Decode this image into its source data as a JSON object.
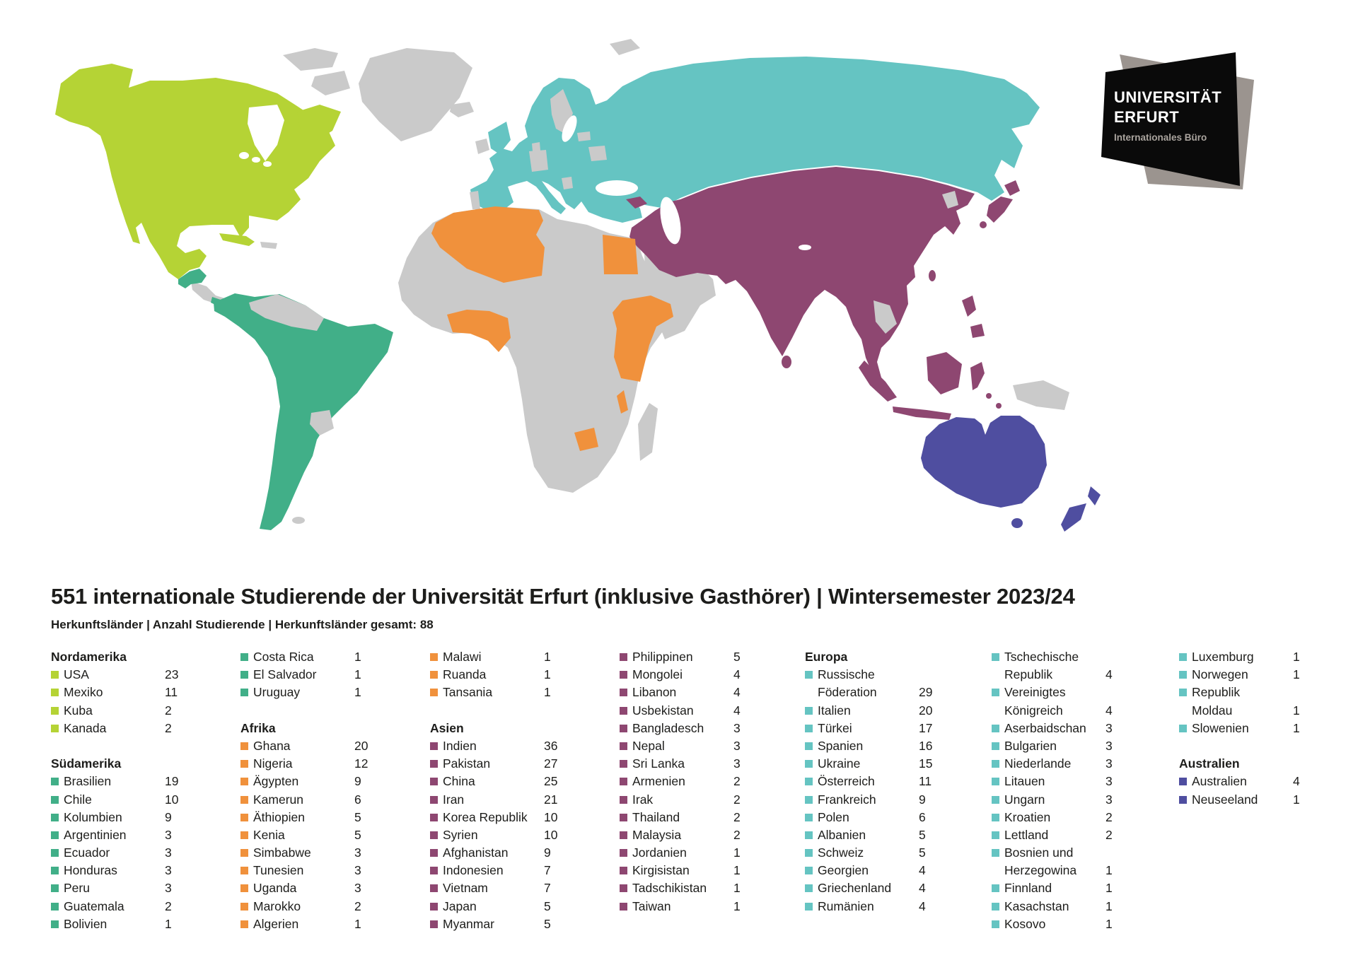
{
  "title": "551 internationale Studierende der Universität Erfurt (inklusive Gasthörer) | Wintersemester 2023/24",
  "subtitle": "Herkunftsländer | Anzahl Studierende | Herkunftsländer gesamt: 88",
  "logo": {
    "line1": "UNIVERSITÄT",
    "line2": "ERFURT",
    "subtitle": "Internationales Büro",
    "black": "#0a0a0a",
    "gray": "#9b948f"
  },
  "map": {
    "colors": {
      "nordamerika": "#b5d335",
      "suedamerika": "#41af88",
      "afrika": "#f0913c",
      "asien": "#8e4771",
      "europa": "#65c4c2",
      "australien": "#4f4ea0",
      "ohne_studierende": "#cacaca"
    }
  },
  "legend": {
    "columns": [
      {
        "rows": [
          {
            "type": "header",
            "text": "Nordamerika"
          },
          {
            "type": "item",
            "color": "nordamerika",
            "text": "USA",
            "value": "23"
          },
          {
            "type": "item",
            "color": "nordamerika",
            "text": "Mexiko",
            "value": "11"
          },
          {
            "type": "item",
            "color": "nordamerika",
            "text": "Kuba",
            "value": "2"
          },
          {
            "type": "item",
            "color": "nordamerika",
            "text": "Kanada",
            "value": "2"
          },
          {
            "type": "spacer"
          },
          {
            "type": "header",
            "text": "Südamerika"
          },
          {
            "type": "item",
            "color": "suedamerika",
            "text": "Brasilien",
            "value": "19"
          },
          {
            "type": "item",
            "color": "suedamerika",
            "text": "Chile",
            "value": "10"
          },
          {
            "type": "item",
            "color": "suedamerika",
            "text": "Kolumbien",
            "value": "9"
          },
          {
            "type": "item",
            "color": "suedamerika",
            "text": "Argentinien",
            "value": "3"
          },
          {
            "type": "item",
            "color": "suedamerika",
            "text": "Ecuador",
            "value": "3"
          },
          {
            "type": "item",
            "color": "suedamerika",
            "text": "Honduras",
            "value": "3"
          },
          {
            "type": "item",
            "color": "suedamerika",
            "text": "Peru",
            "value": "3"
          },
          {
            "type": "item",
            "color": "suedamerika",
            "text": "Guatemala",
            "value": "2"
          },
          {
            "type": "item",
            "color": "suedamerika",
            "text": "Bolivien",
            "value": "1"
          }
        ]
      },
      {
        "rows": [
          {
            "type": "item",
            "color": "suedamerika",
            "text": "Costa Rica",
            "value": "1"
          },
          {
            "type": "item",
            "color": "suedamerika",
            "text": "El Salvador",
            "value": "1"
          },
          {
            "type": "item",
            "color": "suedamerika",
            "text": "Uruguay",
            "value": "1"
          },
          {
            "type": "spacer"
          },
          {
            "type": "header",
            "text": "Afrika"
          },
          {
            "type": "item",
            "color": "afrika",
            "text": "Ghana",
            "value": "20"
          },
          {
            "type": "item",
            "color": "afrika",
            "text": "Nigeria",
            "value": "12"
          },
          {
            "type": "item",
            "color": "afrika",
            "text": "Ägypten",
            "value": "9"
          },
          {
            "type": "item",
            "color": "afrika",
            "text": "Kamerun",
            "value": "6"
          },
          {
            "type": "item",
            "color": "afrika",
            "text": "Äthiopien",
            "value": "5"
          },
          {
            "type": "item",
            "color": "afrika",
            "text": "Kenia",
            "value": "5"
          },
          {
            "type": "item",
            "color": "afrika",
            "text": "Simbabwe",
            "value": "3"
          },
          {
            "type": "item",
            "color": "afrika",
            "text": "Tunesien",
            "value": "3"
          },
          {
            "type": "item",
            "color": "afrika",
            "text": "Uganda",
            "value": "3"
          },
          {
            "type": "item",
            "color": "afrika",
            "text": "Marokko",
            "value": "2"
          },
          {
            "type": "item",
            "color": "afrika",
            "text": "Algerien",
            "value": "1"
          }
        ]
      },
      {
        "rows": [
          {
            "type": "item",
            "color": "afrika",
            "text": "Malawi",
            "value": "1"
          },
          {
            "type": "item",
            "color": "afrika",
            "text": "Ruanda",
            "value": "1"
          },
          {
            "type": "item",
            "color": "afrika",
            "text": "Tansania",
            "value": "1"
          },
          {
            "type": "spacer"
          },
          {
            "type": "header",
            "text": "Asien"
          },
          {
            "type": "item",
            "color": "asien",
            "text": "Indien",
            "value": "36"
          },
          {
            "type": "item",
            "color": "asien",
            "text": "Pakistan",
            "value": "27"
          },
          {
            "type": "item",
            "color": "asien",
            "text": "China",
            "value": "25"
          },
          {
            "type": "item",
            "color": "asien",
            "text": "Iran",
            "value": "21"
          },
          {
            "type": "item",
            "color": "asien",
            "text": "Korea Republik",
            "value": "10"
          },
          {
            "type": "item",
            "color": "asien",
            "text": "Syrien",
            "value": "10"
          },
          {
            "type": "item",
            "color": "asien",
            "text": "Afghanistan",
            "value": "9"
          },
          {
            "type": "item",
            "color": "asien",
            "text": "Indonesien",
            "value": "7"
          },
          {
            "type": "item",
            "color": "asien",
            "text": "Vietnam",
            "value": "7"
          },
          {
            "type": "item",
            "color": "asien",
            "text": "Japan",
            "value": "5"
          },
          {
            "type": "item",
            "color": "asien",
            "text": "Myanmar",
            "value": "5"
          }
        ]
      },
      {
        "rows": [
          {
            "type": "item",
            "color": "asien",
            "text": "Philippinen",
            "value": "5"
          },
          {
            "type": "item",
            "color": "asien",
            "text": "Mongolei",
            "value": "4"
          },
          {
            "type": "item",
            "color": "asien",
            "text": "Libanon",
            "value": "4"
          },
          {
            "type": "item",
            "color": "asien",
            "text": "Usbekistan",
            "value": "4"
          },
          {
            "type": "item",
            "color": "asien",
            "text": "Bangladesch",
            "value": "3"
          },
          {
            "type": "item",
            "color": "asien",
            "text": "Nepal",
            "value": "3"
          },
          {
            "type": "item",
            "color": "asien",
            "text": "Sri Lanka",
            "value": "3"
          },
          {
            "type": "item",
            "color": "asien",
            "text": "Armenien",
            "value": "2"
          },
          {
            "type": "item",
            "color": "asien",
            "text": "Irak",
            "value": "2"
          },
          {
            "type": "item",
            "color": "asien",
            "text": "Thailand",
            "value": "2"
          },
          {
            "type": "item",
            "color": "asien",
            "text": "Malaysia",
            "value": "2"
          },
          {
            "type": "item",
            "color": "asien",
            "text": "Jordanien",
            "value": "1"
          },
          {
            "type": "item",
            "color": "asien",
            "text": "Kirgisistan",
            "value": "1"
          },
          {
            "type": "item",
            "color": "asien",
            "text": "Tadschikistan",
            "value": "1"
          },
          {
            "type": "item",
            "color": "asien",
            "text": "Taiwan",
            "value": "1"
          }
        ]
      },
      {
        "rows": [
          {
            "type": "header",
            "text": "Europa"
          },
          {
            "type": "item",
            "color": "europa",
            "text": "Russische",
            "value": ""
          },
          {
            "type": "cont",
            "text": "Föderation",
            "value": "29"
          },
          {
            "type": "item",
            "color": "europa",
            "text": "Italien",
            "value": "20"
          },
          {
            "type": "item",
            "color": "europa",
            "text": "Türkei",
            "value": "17"
          },
          {
            "type": "item",
            "color": "europa",
            "text": "Spanien",
            "value": "16"
          },
          {
            "type": "item",
            "color": "europa",
            "text": "Ukraine",
            "value": "15"
          },
          {
            "type": "item",
            "color": "europa",
            "text": "Österreich",
            "value": "11"
          },
          {
            "type": "item",
            "color": "europa",
            "text": "Frankreich",
            "value": "9"
          },
          {
            "type": "item",
            "color": "europa",
            "text": "Polen",
            "value": "6"
          },
          {
            "type": "item",
            "color": "europa",
            "text": "Albanien",
            "value": "5"
          },
          {
            "type": "item",
            "color": "europa",
            "text": "Schweiz",
            "value": "5"
          },
          {
            "type": "item",
            "color": "europa",
            "text": "Georgien",
            "value": "4"
          },
          {
            "type": "item",
            "color": "europa",
            "text": "Griechenland",
            "value": "4"
          },
          {
            "type": "item",
            "color": "europa",
            "text": "Rumänien",
            "value": "4"
          }
        ]
      },
      {
        "rows": [
          {
            "type": "item",
            "color": "europa",
            "text": "Tschechische",
            "value": ""
          },
          {
            "type": "cont",
            "text": "Republik",
            "value": "4"
          },
          {
            "type": "item",
            "color": "europa",
            "text": "Vereinigtes",
            "value": ""
          },
          {
            "type": "cont",
            "text": "Königreich",
            "value": "4"
          },
          {
            "type": "item",
            "color": "europa",
            "text": "Aserbaidschan",
            "value": "3"
          },
          {
            "type": "item",
            "color": "europa",
            "text": "Bulgarien",
            "value": "3"
          },
          {
            "type": "item",
            "color": "europa",
            "text": "Niederlande",
            "value": "3"
          },
          {
            "type": "item",
            "color": "europa",
            "text": "Litauen",
            "value": "3"
          },
          {
            "type": "item",
            "color": "europa",
            "text": "Ungarn",
            "value": "3"
          },
          {
            "type": "item",
            "color": "europa",
            "text": "Kroatien",
            "value": "2"
          },
          {
            "type": "item",
            "color": "europa",
            "text": "Lettland",
            "value": "2"
          },
          {
            "type": "item",
            "color": "europa",
            "text": "Bosnien und",
            "value": ""
          },
          {
            "type": "cont",
            "text": "Herzegowina",
            "value": "1"
          },
          {
            "type": "item",
            "color": "europa",
            "text": "Finnland",
            "value": "1"
          },
          {
            "type": "item",
            "color": "europa",
            "text": "Kasachstan",
            "value": "1"
          },
          {
            "type": "item",
            "color": "europa",
            "text": "Kosovo",
            "value": "1"
          }
        ]
      },
      {
        "rows": [
          {
            "type": "item",
            "color": "europa",
            "text": "Luxemburg",
            "value": "1"
          },
          {
            "type": "item",
            "color": "europa",
            "text": "Norwegen",
            "value": "1"
          },
          {
            "type": "item",
            "color": "europa",
            "text": "Republik",
            "value": ""
          },
          {
            "type": "cont",
            "text": "Moldau",
            "value": "1"
          },
          {
            "type": "item",
            "color": "europa",
            "text": "Slowenien",
            "value": "1"
          },
          {
            "type": "spacer"
          },
          {
            "type": "header",
            "text": "Australien"
          },
          {
            "type": "item",
            "color": "australien",
            "text": "Australien",
            "value": "4"
          },
          {
            "type": "item",
            "color": "australien",
            "text": "Neuseeland",
            "value": "1"
          }
        ]
      }
    ]
  }
}
